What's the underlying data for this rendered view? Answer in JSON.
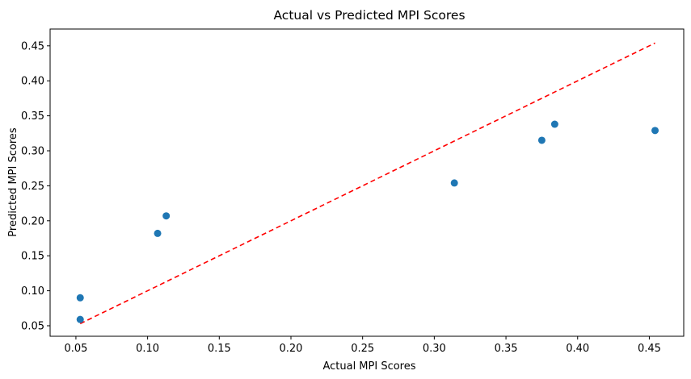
{
  "chart_data": {
    "type": "scatter",
    "title": "Actual vs Predicted MPI Scores",
    "xlabel": "Actual MPI Scores",
    "ylabel": "Predicted MPI Scores",
    "xlim": [
      0.032,
      0.474
    ],
    "ylim": [
      0.035,
      0.474
    ],
    "xticks": [
      0.05,
      0.1,
      0.15,
      0.2,
      0.25,
      0.3,
      0.35,
      0.4,
      0.45
    ],
    "xtick_labels": [
      "0.05",
      "0.10",
      "0.15",
      "0.20",
      "0.25",
      "0.30",
      "0.35",
      "0.40",
      "0.45"
    ],
    "yticks": [
      0.05,
      0.1,
      0.15,
      0.2,
      0.25,
      0.3,
      0.35,
      0.4,
      0.45
    ],
    "ytick_labels": [
      "0.05",
      "0.10",
      "0.15",
      "0.20",
      "0.25",
      "0.30",
      "0.35",
      "0.40",
      "0.45"
    ],
    "grid": false,
    "points": [
      {
        "x": 0.053,
        "y": 0.059
      },
      {
        "x": 0.053,
        "y": 0.09
      },
      {
        "x": 0.107,
        "y": 0.182
      },
      {
        "x": 0.113,
        "y": 0.207
      },
      {
        "x": 0.314,
        "y": 0.254
      },
      {
        "x": 0.375,
        "y": 0.315
      },
      {
        "x": 0.384,
        "y": 0.338
      },
      {
        "x": 0.454,
        "y": 0.329
      }
    ],
    "reference_line": {
      "x": [
        0.053,
        0.454
      ],
      "y": [
        0.053,
        0.454
      ],
      "style": "dashed"
    },
    "colors": {
      "points": "#1f77b4",
      "reference_line": "#ff0000"
    }
  }
}
